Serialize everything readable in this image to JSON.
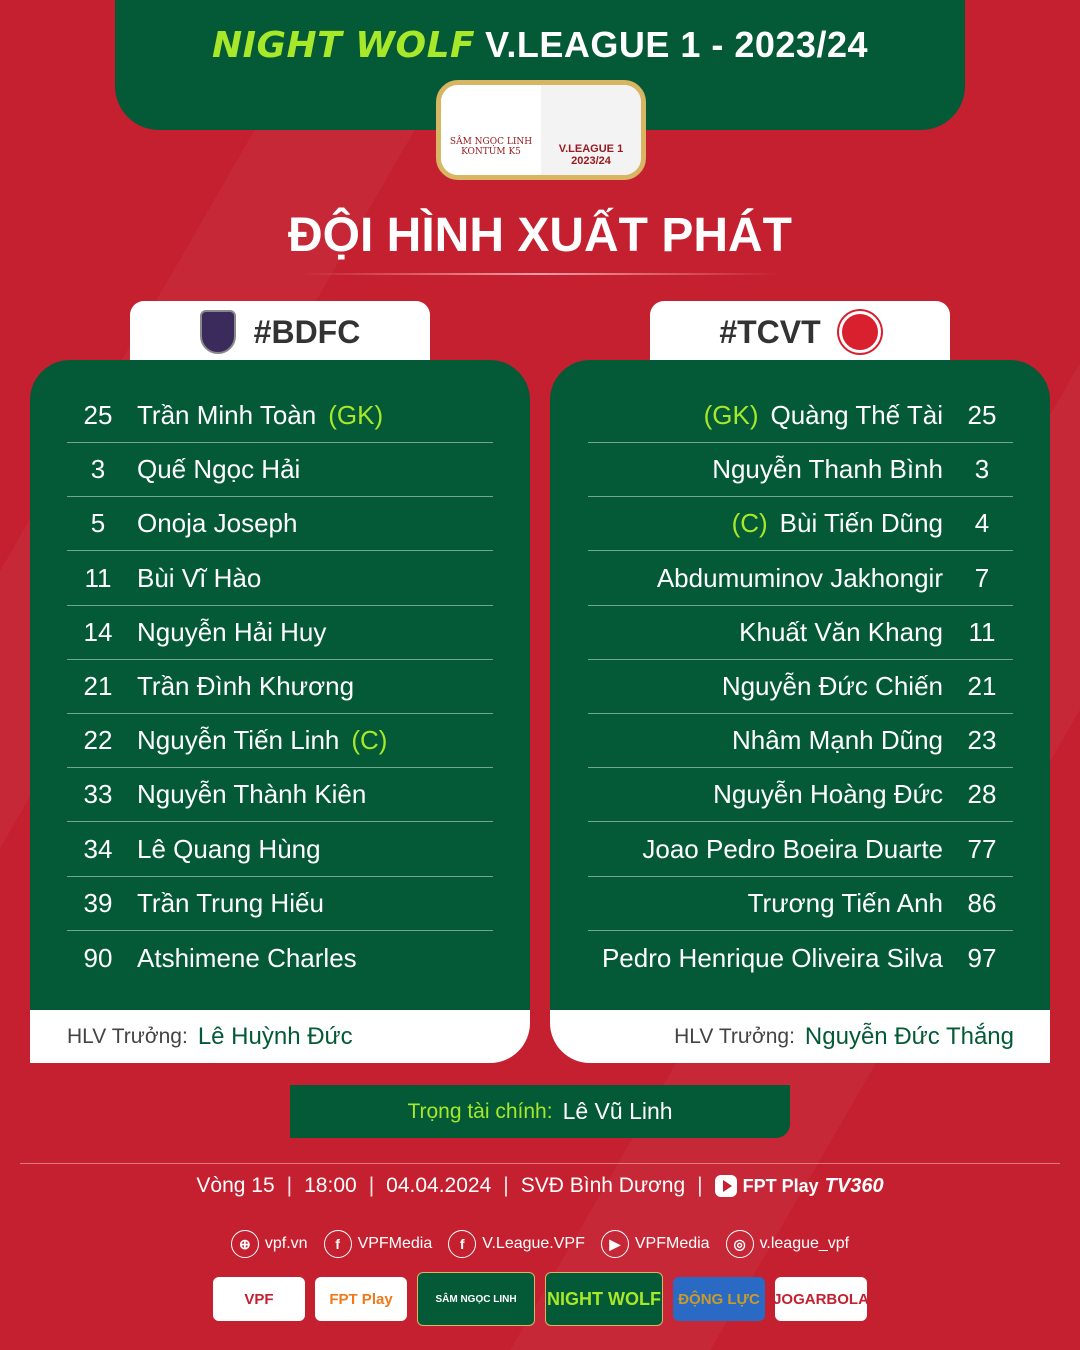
{
  "header": {
    "brand": "NIGHT WOLF",
    "title": "V.LEAGUE 1 - 2023/24"
  },
  "logo": {
    "left_text": "SÂM NGỌC LINH KONTUM K5",
    "right_text": "V.LEAGUE 1 2023/24"
  },
  "page_title": "ĐỘI HÌNH XUẤT PHÁT",
  "colors": {
    "background": "#c4202f",
    "panel": "#045a36",
    "accent": "#a7e82a"
  },
  "home": {
    "tag": "#BDFC",
    "coach_label": "HLV Trưởng:",
    "coach": "Lê Huỳnh Đức",
    "players": [
      {
        "number": "25",
        "name": "Trần Minh Toàn",
        "tag": "(GK)"
      },
      {
        "number": "3",
        "name": "Quế Ngọc Hải",
        "tag": ""
      },
      {
        "number": "5",
        "name": "Onoja Joseph",
        "tag": ""
      },
      {
        "number": "11",
        "name": "Bùi Vĩ Hào",
        "tag": ""
      },
      {
        "number": "14",
        "name": "Nguyễn Hải Huy",
        "tag": ""
      },
      {
        "number": "21",
        "name": "Trần Đình Khương",
        "tag": ""
      },
      {
        "number": "22",
        "name": "Nguyễn Tiến Linh",
        "tag": "(C)"
      },
      {
        "number": "33",
        "name": "Nguyễn Thành Kiên",
        "tag": ""
      },
      {
        "number": "34",
        "name": "Lê Quang Hùng",
        "tag": ""
      },
      {
        "number": "39",
        "name": "Trần Trung Hiếu",
        "tag": ""
      },
      {
        "number": "90",
        "name": "Atshimene Charles",
        "tag": ""
      }
    ]
  },
  "away": {
    "tag": "#TCVT",
    "coach_label": "HLV Trưởng:",
    "coach": "Nguyễn Đức Thắng",
    "players": [
      {
        "number": "25",
        "name": "Quàng Thế Tài",
        "tag": "(GK)"
      },
      {
        "number": "3",
        "name": "Nguyễn Thanh Bình",
        "tag": ""
      },
      {
        "number": "4",
        "name": "Bùi Tiến Dũng",
        "tag": "(C)"
      },
      {
        "number": "7",
        "name": "Abdumuminov Jakhongir",
        "tag": ""
      },
      {
        "number": "11",
        "name": "Khuất Văn Khang",
        "tag": ""
      },
      {
        "number": "21",
        "name": "Nguyễn Đức Chiến",
        "tag": ""
      },
      {
        "number": "23",
        "name": "Nhâm Mạnh Dũng",
        "tag": ""
      },
      {
        "number": "28",
        "name": "Nguyễn Hoàng Đức",
        "tag": ""
      },
      {
        "number": "77",
        "name": "Joao Pedro Boeira Duarte",
        "tag": ""
      },
      {
        "number": "86",
        "name": "Trương Tiến Anh",
        "tag": ""
      },
      {
        "number": "97",
        "name": "Pedro Henrique Oliveira Silva",
        "tag": ""
      }
    ]
  },
  "referee": {
    "label": "Trọng tài chính:",
    "name": "Lê Vũ Linh"
  },
  "match_info": {
    "round": "Vòng 15",
    "time": "18:00",
    "date": "04.04.2024",
    "venue": "SVĐ Bình Dương",
    "broadcaster": "FPT Play",
    "broadcaster2": "TV360"
  },
  "socials": [
    {
      "icon": "globe-icon",
      "glyph": "⊕",
      "label": "vpf.vn"
    },
    {
      "icon": "facebook-icon",
      "glyph": "f",
      "label": "VPFMedia"
    },
    {
      "icon": "facebook-icon",
      "glyph": "f",
      "label": "V.League.VPF"
    },
    {
      "icon": "youtube-icon",
      "glyph": "▶",
      "label": "VPFMedia"
    },
    {
      "icon": "instagram-icon",
      "glyph": "◎",
      "label": "v.league_vpf"
    }
  ],
  "sponsors": [
    "VPF",
    "FPT Play",
    "SÂM NGỌC LINH",
    "NIGHT WOLF",
    "ĐỘNG LỰC",
    "JOGARBOLA"
  ]
}
